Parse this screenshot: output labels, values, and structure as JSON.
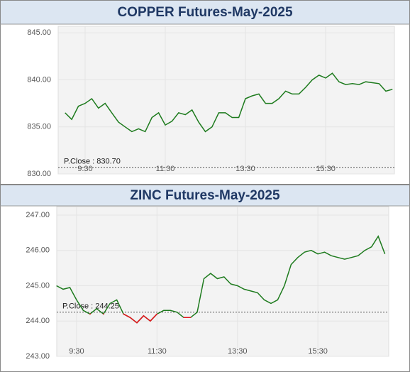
{
  "chart_data": [
    {
      "type": "line",
      "title": "COPPER Futures-May-2025",
      "categories": [
        null,
        null,
        null,
        "9:30",
        null,
        null,
        null,
        null,
        null,
        null,
        null,
        null,
        null,
        null,
        null,
        "11:30",
        null,
        null,
        null,
        null,
        null,
        null,
        null,
        null,
        null,
        null,
        null,
        "13:30",
        null,
        null,
        null,
        null,
        null,
        null,
        null,
        null,
        null,
        null,
        null,
        "15:30",
        null,
        null,
        null,
        null,
        null,
        null,
        null,
        null,
        null,
        null
      ],
      "values": [
        836.5,
        835.8,
        837.2,
        837.5,
        838.0,
        837.0,
        837.5,
        836.5,
        835.5,
        835.0,
        834.5,
        834.8,
        834.5,
        836.0,
        836.5,
        835.2,
        835.6,
        836.5,
        836.3,
        836.8,
        835.5,
        834.5,
        835.0,
        836.5,
        836.5,
        836.0,
        836.0,
        838.0,
        838.3,
        838.5,
        837.5,
        837.5,
        838.0,
        838.8,
        838.5,
        838.5,
        839.2,
        840.0,
        840.5,
        840.2,
        840.7,
        839.8,
        839.5,
        839.6,
        839.5,
        839.8,
        839.7,
        839.6,
        838.8,
        839.0
      ],
      "color": "#1e7b1e",
      "ylim": [
        830,
        845.7
      ],
      "yticks": [
        {
          "value": 830,
          "label": "830.00"
        },
        {
          "value": 835,
          "label": "835.00"
        },
        {
          "value": 840,
          "label": "840.00"
        },
        {
          "value": 845,
          "label": "845.00"
        }
      ],
      "pclose": 830.7,
      "pclose_label": "P.Close : 830.70",
      "grid": true
    },
    {
      "type": "line",
      "title": "ZINC Futures-May-2025",
      "categories": [
        null,
        null,
        null,
        "9:30",
        null,
        null,
        null,
        null,
        null,
        null,
        null,
        null,
        null,
        null,
        null,
        "11:30",
        null,
        null,
        null,
        null,
        null,
        null,
        null,
        null,
        null,
        null,
        null,
        "13:30",
        null,
        null,
        null,
        null,
        null,
        null,
        null,
        null,
        null,
        null,
        null,
        "15:30",
        null,
        null,
        null,
        null,
        null,
        null,
        null,
        null,
        null,
        null
      ],
      "values": [
        245.0,
        244.9,
        244.95,
        244.6,
        244.3,
        244.2,
        244.35,
        244.2,
        244.5,
        244.6,
        244.2,
        244.1,
        243.95,
        244.15,
        244.0,
        244.2,
        244.3,
        244.3,
        244.25,
        244.1,
        244.1,
        244.25,
        245.2,
        245.35,
        245.2,
        245.25,
        245.05,
        245.0,
        244.9,
        244.85,
        244.8,
        244.6,
        244.5,
        244.6,
        245.0,
        245.6,
        245.8,
        245.95,
        246.0,
        245.9,
        245.95,
        245.85,
        245.8,
        245.75,
        245.8,
        245.85,
        246.0,
        246.1,
        246.4,
        245.9
      ],
      "color": "#1e7b1e",
      "below_color": "#e3141c",
      "ylim": [
        243,
        247.24
      ],
      "yticks": [
        {
          "value": 243,
          "label": "243.00"
        },
        {
          "value": 244,
          "label": "244.00"
        },
        {
          "value": 245,
          "label": "245.00"
        },
        {
          "value": 246,
          "label": "246.00"
        },
        {
          "value": 247,
          "label": "247.00"
        }
      ],
      "pclose": 244.25,
      "pclose_label": "P.Close : 244.25",
      "grid": true
    }
  ]
}
